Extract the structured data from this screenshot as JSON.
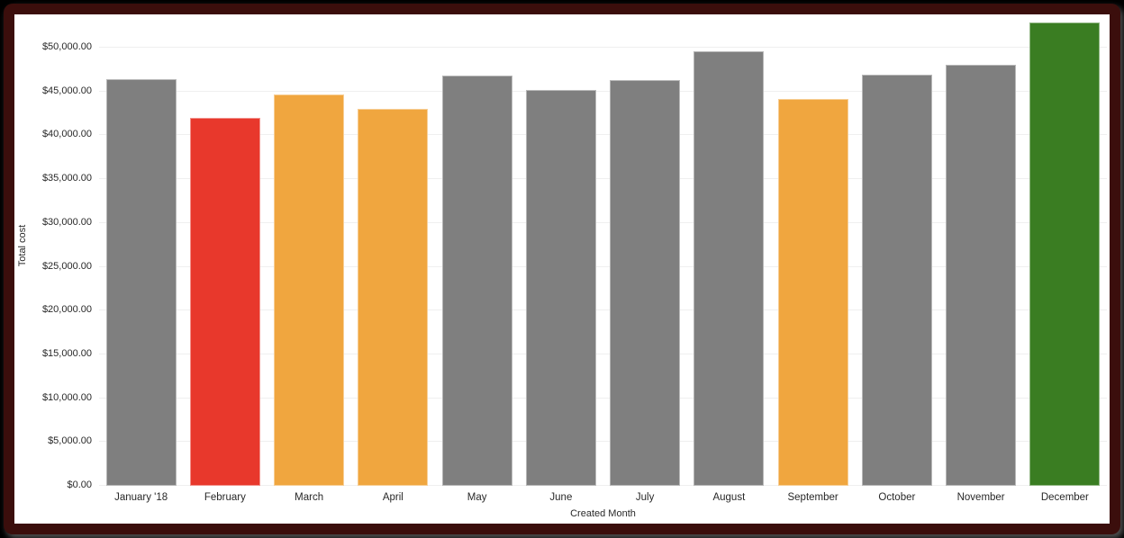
{
  "chart_data": {
    "type": "bar",
    "title": "",
    "xlabel": "Created Month",
    "ylabel": "Total cost",
    "categories": [
      "January '18",
      "February",
      "March",
      "April",
      "May",
      "June",
      "July",
      "August",
      "September",
      "October",
      "November",
      "December"
    ],
    "values": [
      46400,
      42000,
      44700,
      43000,
      46800,
      45200,
      46300,
      49600,
      44100,
      46900,
      48000,
      52900
    ],
    "bar_colors": [
      "#7F7F7F",
      "#E8382C",
      "#F0A63F",
      "#F0A63F",
      "#7F7F7F",
      "#7F7F7F",
      "#7F7F7F",
      "#7F7F7F",
      "#F0A63F",
      "#7F7F7F",
      "#7F7F7F",
      "#3A7D22"
    ],
    "ylim": [
      0,
      50000
    ],
    "ytick_interval": 5000,
    "yticks": [
      {
        "value": 0,
        "label": "$0.00"
      },
      {
        "value": 5000,
        "label": "$5,000.00"
      },
      {
        "value": 10000,
        "label": "$10,000.00"
      },
      {
        "value": 15000,
        "label": "$15,000.00"
      },
      {
        "value": 20000,
        "label": "$20,000.00"
      },
      {
        "value": 25000,
        "label": "$25,000.00"
      },
      {
        "value": 30000,
        "label": "$30,000.00"
      },
      {
        "value": 35000,
        "label": "$35,000.00"
      },
      {
        "value": 40000,
        "label": "$40,000.00"
      },
      {
        "value": 45000,
        "label": "$45,000.00"
      },
      {
        "value": 50000,
        "label": "$50,000.00"
      }
    ],
    "grid": true,
    "legend": "none"
  },
  "colors": {
    "frame_border": "#3B0E0C",
    "outer_background": "#000000",
    "chart_background": "#FFFFFF",
    "gridline": "#EFEFEF",
    "axis_text": "#282828",
    "bar_gray": "#7F7F7F",
    "bar_red": "#E8382C",
    "bar_orange": "#F0A63F",
    "bar_green": "#3A7D22"
  }
}
